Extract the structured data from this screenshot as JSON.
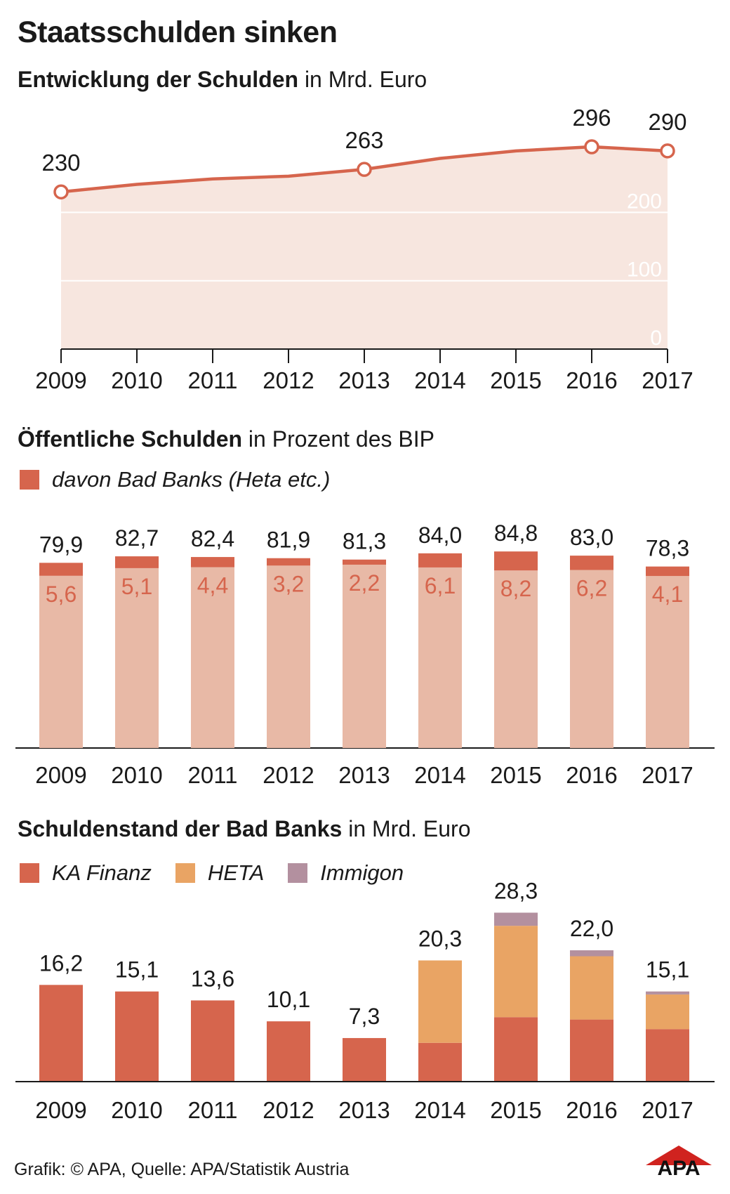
{
  "title": "Staatsschulden sinken",
  "colors": {
    "accent": "#d6654d",
    "area": "#f7e6df",
    "bar_light": "#e8b9a6",
    "heta": "#e9a464",
    "immigon": "#b3909f",
    "label_muted": "#d6654d",
    "axis": "#1a1a1a"
  },
  "charts": {
    "debt": {
      "title_bold": "Entwicklung der Schulden",
      "title_rest": " in Mrd. Euro"
    },
    "gdp": {
      "title_bold": "Öffentliche Schulden",
      "title_rest": " in Prozent des BIP",
      "legend": "davon Bad Banks (Heta etc.)"
    },
    "badbanks": {
      "title_bold": "Schuldenstand der Bad Banks",
      "title_rest": " in Mrd. Euro",
      "legend": [
        "KA Finanz",
        "HETA",
        "Immigon"
      ]
    }
  },
  "chart_data": [
    {
      "type": "area",
      "x": [
        "2009",
        "2010",
        "2011",
        "2012",
        "2013",
        "2014",
        "2015",
        "2016",
        "2017"
      ],
      "series": [
        {
          "values": [
            230,
            241,
            249,
            253,
            263,
            279,
            290,
            296,
            290
          ]
        }
      ],
      "point_labels": {
        "2009": "230",
        "2013": "263",
        "2016": "296",
        "2017": "290"
      },
      "yticks": [
        "0",
        "100",
        "200"
      ],
      "ylim": [
        0,
        300
      ],
      "grid": true
    },
    {
      "type": "bar",
      "stacked": true,
      "categories": [
        "2009",
        "2010",
        "2011",
        "2012",
        "2013",
        "2014",
        "2015",
        "2016",
        "2017"
      ],
      "totals": [
        79.9,
        82.7,
        82.4,
        81.9,
        81.3,
        84.0,
        84.8,
        83.0,
        78.3
      ],
      "total_labels": [
        "79,9",
        "82,7",
        "82,4",
        "81,9",
        "81,3",
        "84,0",
        "84,8",
        "83,0",
        "78,3"
      ],
      "series": [
        {
          "name": "davon Bad Banks (Heta etc.)",
          "values": [
            5.6,
            5.1,
            4.4,
            3.2,
            2.2,
            6.1,
            8.2,
            6.2,
            4.1
          ],
          "labels": [
            "5,6",
            "5,1",
            "4,4",
            "3,2",
            "2,2",
            "6,1",
            "8,2",
            "6,2",
            "4,1"
          ]
        }
      ],
      "ylim": [
        0,
        90
      ]
    },
    {
      "type": "bar",
      "stacked": true,
      "categories": [
        "2009",
        "2010",
        "2011",
        "2012",
        "2013",
        "2014",
        "2015",
        "2016",
        "2017"
      ],
      "totals": [
        16.2,
        15.1,
        13.6,
        10.1,
        7.3,
        20.3,
        28.3,
        22.0,
        15.1
      ],
      "total_labels": [
        "16,2",
        "15,1",
        "13,6",
        "10,1",
        "7,3",
        "20,3",
        "28,3",
        "22,0",
        "15,1"
      ],
      "series": [
        {
          "name": "KA Finanz",
          "values": [
            16.2,
            15.1,
            13.6,
            10.1,
            7.3,
            6.5,
            10.8,
            10.4,
            8.8
          ]
        },
        {
          "name": "HETA",
          "values": [
            0,
            0,
            0,
            0,
            0,
            13.8,
            15.3,
            10.6,
            5.8
          ]
        },
        {
          "name": "Immigon",
          "values": [
            0,
            0,
            0,
            0,
            0,
            0,
            2.2,
            1.0,
            0.5
          ]
        }
      ],
      "ylim": [
        0,
        30
      ]
    }
  ],
  "footer": "Grafik: © APA, Quelle: APA/Statistik Austria",
  "logo_text": "APA"
}
